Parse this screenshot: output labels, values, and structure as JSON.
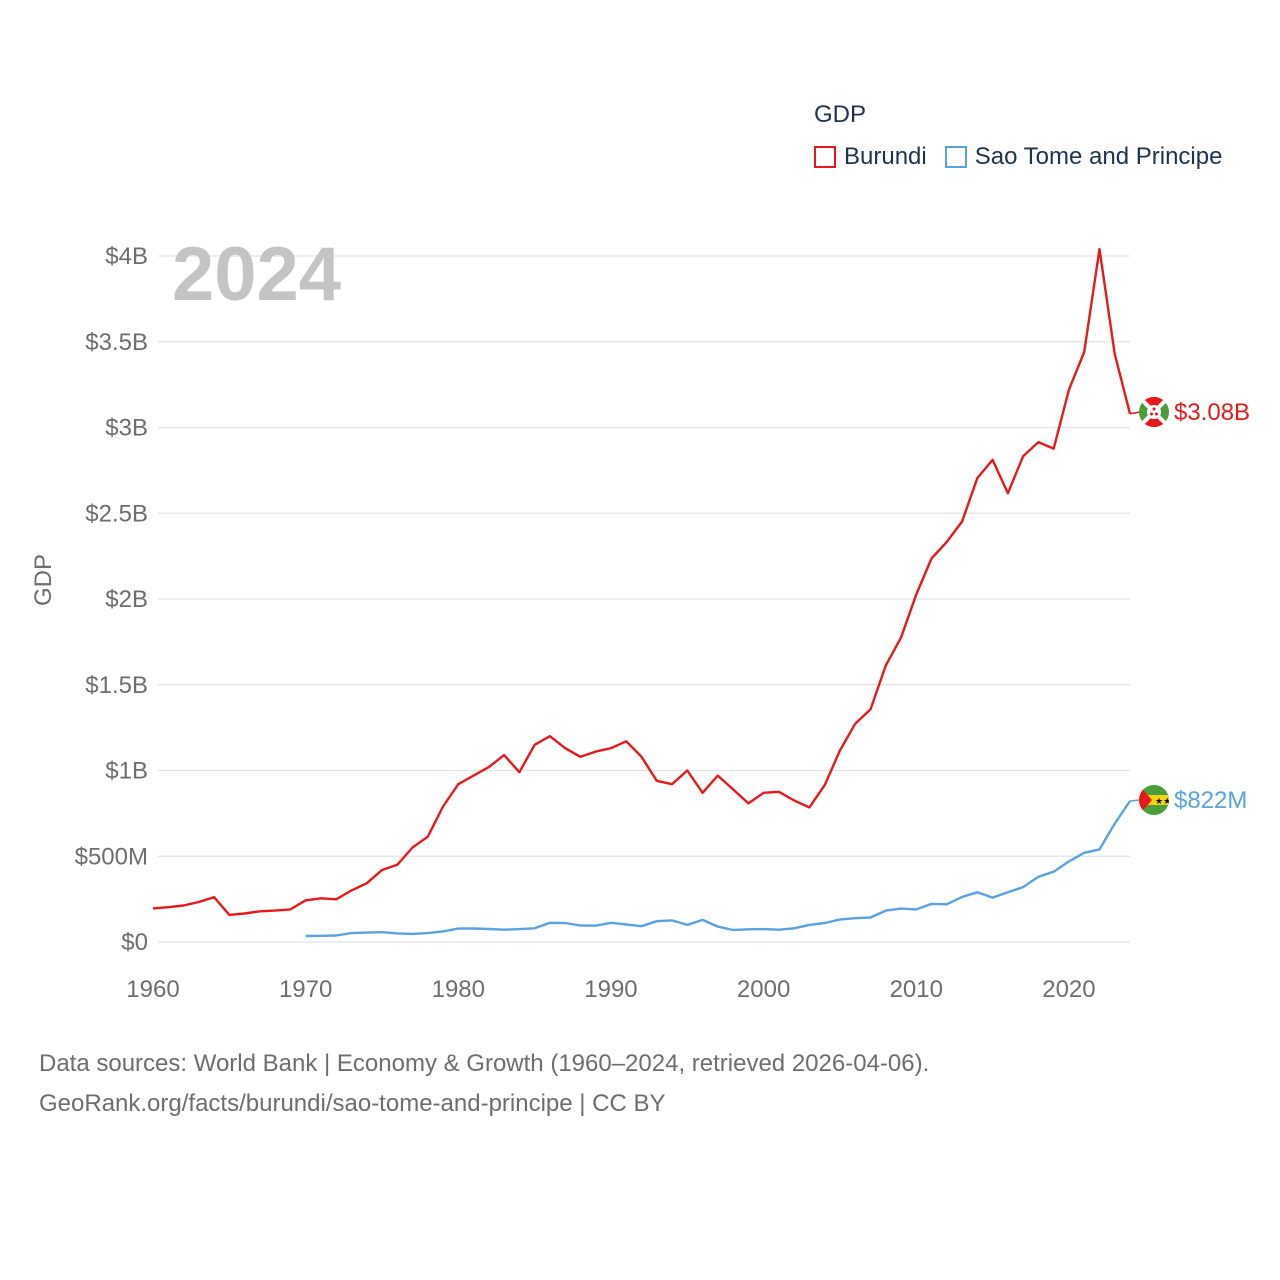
{
  "legend": {
    "title": "GDP",
    "items": [
      {
        "name": "Burundi",
        "color": "#e8191c"
      },
      {
        "name": "Sao Tome and Principe",
        "color": "#5aa2e0"
      }
    ]
  },
  "footer": {
    "line1": "Data sources: World Bank | Economy & Growth (1960–2024, retrieved 2026-04-06).",
    "line2": "GeoRank.org/facts/burundi/sao-tome-and-principe | CC BY"
  },
  "chart_data": {
    "type": "line",
    "title": "GDP",
    "year_label": "2024",
    "ylabel": "GDP",
    "xlabel": "",
    "xlim": [
      1960,
      2024
    ],
    "ylim": [
      0,
      4000000000
    ],
    "x_ticks": [
      1960,
      1970,
      1980,
      1990,
      2000,
      2010,
      2020
    ],
    "y_ticks": [
      {
        "value": 0,
        "label": "$0"
      },
      {
        "value": 500000000,
        "label": "$500M"
      },
      {
        "value": 1000000000,
        "label": "$1B"
      },
      {
        "value": 1500000000,
        "label": "$1.5B"
      },
      {
        "value": 2000000000,
        "label": "$2B"
      },
      {
        "value": 2500000000,
        "label": "$2.5B"
      },
      {
        "value": 3000000000,
        "label": "$3B"
      },
      {
        "value": 3500000000,
        "label": "$3.5B"
      },
      {
        "value": 4000000000,
        "label": "$4B"
      }
    ],
    "grid": true,
    "series": [
      {
        "name": "Burundi",
        "color": "#e8191c",
        "end_label": "$3.08B",
        "flag": "burundi-flag",
        "x_start": 1960,
        "values": [
          196000000,
          203000000,
          213000000,
          233000000,
          261000000,
          158000000,
          166000000,
          179000000,
          183000000,
          190000000,
          243000000,
          255000000,
          249000000,
          301000000,
          342000000,
          420000000,
          450000000,
          551000000,
          614000000,
          790000000,
          920000000,
          970000000,
          1020000000,
          1090000000,
          990000000,
          1150000000,
          1200000000,
          1130000000,
          1080000000,
          1110000000,
          1130000000,
          1170000000,
          1080000000,
          940000000,
          920000000,
          1000000000,
          870000000,
          970000000,
          890000000,
          808000000,
          870000000,
          876000000,
          825000000,
          785000000,
          915000000,
          1117000000,
          1273000000,
          1356000000,
          1612000000,
          1775000000,
          2027000000,
          2236000000,
          2333000000,
          2452000000,
          2705000000,
          2811000000,
          2617000000,
          2832000000,
          2915000000,
          2877000000,
          3220000000,
          3440000000,
          4040000000,
          3430000000,
          3080000000
        ]
      },
      {
        "name": "Sao Tome and Principe",
        "color": "#5aa2e0",
        "end_label": "$822M",
        "flag": "sao-tome-flag",
        "x_start": 1970,
        "values": [
          35000000,
          36000000,
          38000000,
          52000000,
          55000000,
          57000000,
          50000000,
          47000000,
          52000000,
          62000000,
          78000000,
          79000000,
          76000000,
          72000000,
          75000000,
          80000000,
          112000000,
          111000000,
          96000000,
          95000000,
          112000000,
          102000000,
          92000000,
          121000000,
          126000000,
          100000000,
          129000000,
          90000000,
          70000000,
          74000000,
          75000000,
          72000000,
          80000000,
          100000000,
          111000000,
          132000000,
          139000000,
          143000000,
          183000000,
          195000000,
          190000000,
          222000000,
          220000000,
          263000000,
          290000000,
          259000000,
          290000000,
          320000000,
          380000000,
          410000000,
          470000000,
          520000000,
          540000000,
          690000000,
          822000000
        ]
      }
    ]
  }
}
